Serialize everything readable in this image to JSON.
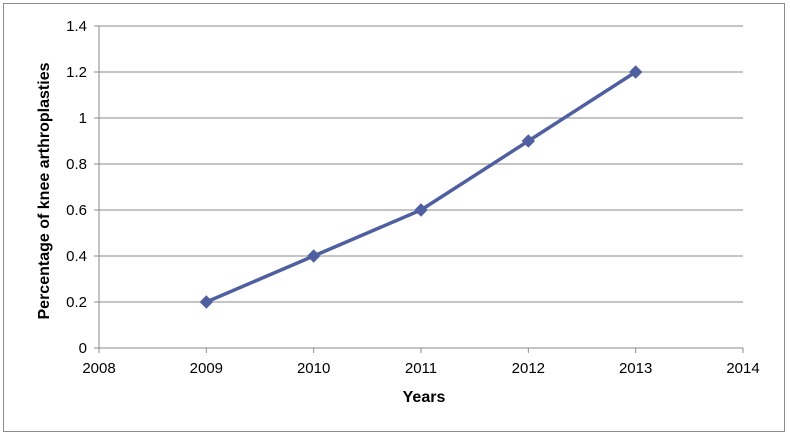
{
  "chart_data": {
    "type": "line",
    "title": "",
    "xlabel": "Years",
    "ylabel": "Percentage of knee arthroplasties",
    "xlim": [
      2008,
      2014
    ],
    "ylim": [
      0,
      1.4
    ],
    "xticks": [
      "2008",
      "2009",
      "2010",
      "2011",
      "2012",
      "2013",
      "2014"
    ],
    "yticks": [
      "0",
      "0.2",
      "0.4",
      "0.6",
      "0.8",
      "1",
      "1.2",
      "1.4"
    ],
    "grid": true,
    "legend": "none",
    "series": [
      {
        "color": "#4f5fa0",
        "marker": "diamond",
        "x": [
          2009,
          2010,
          2011,
          2012,
          2013
        ],
        "y": [
          0.2,
          0.4,
          0.6,
          0.9,
          1.2
        ]
      }
    ]
  }
}
